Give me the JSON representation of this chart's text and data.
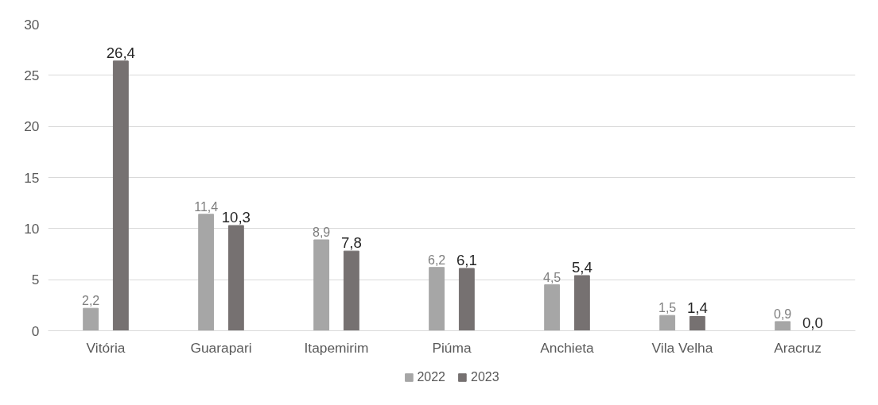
{
  "chart_data": {
    "type": "bar",
    "categories": [
      "Vitória",
      "Guarapari",
      "Itapemirim",
      "Piúma",
      "Anchieta",
      "Vila Velha",
      "Aracruz"
    ],
    "series": [
      {
        "name": "2022",
        "color": "#a6a6a6",
        "values": [
          2.2,
          11.4,
          8.9,
          6.2,
          4.5,
          1.5,
          0.9
        ],
        "value_labels": [
          "2,2",
          "11,4",
          "8,9",
          "6,2",
          "4,5",
          "1,5",
          "0,9"
        ]
      },
      {
        "name": "2023",
        "color": "#767171",
        "values": [
          26.4,
          10.3,
          7.8,
          6.1,
          5.4,
          1.4,
          0.0
        ],
        "value_labels": [
          "26,4",
          "10,3",
          "7,8",
          "6,1",
          "5,4",
          "1,4",
          "0,0"
        ]
      }
    ],
    "ylim": [
      0,
      30
    ],
    "yticks": [
      0,
      5,
      10,
      15,
      20,
      25,
      30
    ],
    "grid": "y",
    "legend": "bottom"
  }
}
